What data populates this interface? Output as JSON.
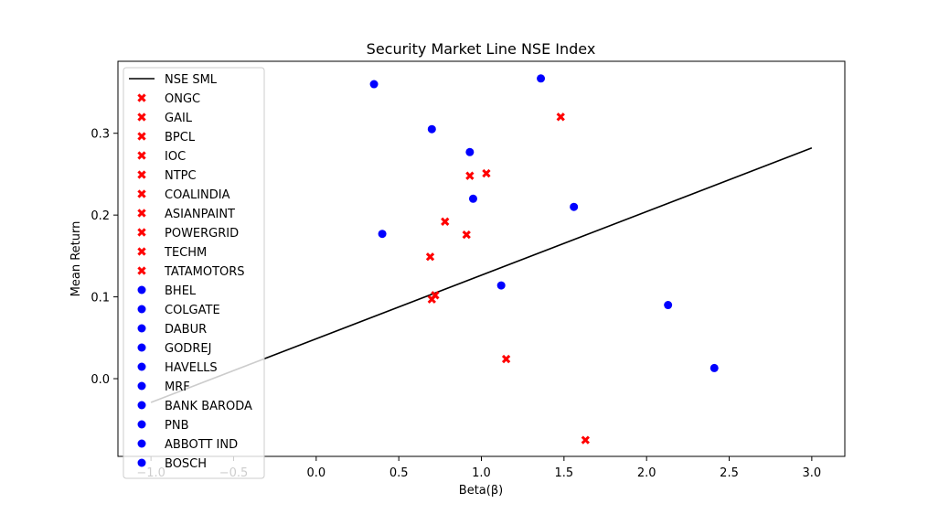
{
  "chart_data": {
    "type": "scatter",
    "title": "Security Market Line NSE Index",
    "xlabel": "Beta(β)",
    "ylabel": "Mean Return",
    "xlim": [
      -1.2,
      3.2
    ],
    "ylim": [
      -0.095,
      0.388
    ],
    "xticks": [
      -1.0,
      -0.5,
      0.0,
      0.5,
      1.0,
      1.5,
      2.0,
      2.5,
      3.0
    ],
    "xtick_labels": [
      "−1.0",
      "−0.5",
      "0.0",
      "0.5",
      "1.0",
      "1.5",
      "2.0",
      "2.5",
      "3.0"
    ],
    "yticks": [
      0.0,
      0.1,
      0.2,
      0.3
    ],
    "ytick_labels": [
      "0.0",
      "0.1",
      "0.2",
      "0.3"
    ],
    "grid": false,
    "legend_position": "upper-left",
    "sml_line": {
      "name": "NSE SML",
      "color": "#000000",
      "x": [
        -1.0,
        3.0
      ],
      "y": [
        -0.029,
        0.282
      ]
    },
    "series": [
      {
        "name": "ONGC",
        "marker": "x",
        "color": "#ff0000",
        "x": 1.48,
        "y": 0.32
      },
      {
        "name": "GAIL",
        "marker": "x",
        "color": "#ff0000",
        "x": 1.03,
        "y": 0.251
      },
      {
        "name": "BPCL",
        "marker": "x",
        "color": "#ff0000",
        "x": 0.93,
        "y": 0.248
      },
      {
        "name": "IOC",
        "marker": "x",
        "color": "#ff0000",
        "x": 0.78,
        "y": 0.192
      },
      {
        "name": "NTPC",
        "marker": "x",
        "color": "#ff0000",
        "x": 0.91,
        "y": 0.176
      },
      {
        "name": "COALINDIA",
        "marker": "x",
        "color": "#ff0000",
        "x": 0.69,
        "y": 0.149
      },
      {
        "name": "ASIANPAINT",
        "marker": "x",
        "color": "#ff0000",
        "x": 0.72,
        "y": 0.102
      },
      {
        "name": "POWERGRID",
        "marker": "x",
        "color": "#ff0000",
        "x": 0.7,
        "y": 0.097
      },
      {
        "name": "TECHM",
        "marker": "x",
        "color": "#ff0000",
        "x": 1.15,
        "y": 0.024
      },
      {
        "name": "TATAMOTORS",
        "marker": "x",
        "color": "#ff0000",
        "x": 1.63,
        "y": -0.075
      },
      {
        "name": "BHEL",
        "marker": "o",
        "color": "#0000ff",
        "x": 0.35,
        "y": 0.36
      },
      {
        "name": "COLGATE",
        "marker": "o",
        "color": "#0000ff",
        "x": 1.36,
        "y": 0.367
      },
      {
        "name": "DABUR",
        "marker": "o",
        "color": "#0000ff",
        "x": 0.7,
        "y": 0.305
      },
      {
        "name": "GODREJ",
        "marker": "o",
        "color": "#0000ff",
        "x": 0.93,
        "y": 0.277
      },
      {
        "name": "HAVELLS",
        "marker": "o",
        "color": "#0000ff",
        "x": 0.95,
        "y": 0.22
      },
      {
        "name": "MRF",
        "marker": "o",
        "color": "#0000ff",
        "x": 1.56,
        "y": 0.21
      },
      {
        "name": "BANK BARODA",
        "marker": "o",
        "color": "#0000ff",
        "x": 0.4,
        "y": 0.177
      },
      {
        "name": "PNB",
        "marker": "o",
        "color": "#0000ff",
        "x": 1.12,
        "y": 0.114
      },
      {
        "name": "ABBOTT IND",
        "marker": "o",
        "color": "#0000ff",
        "x": 2.13,
        "y": 0.09
      },
      {
        "name": "BOSCH",
        "marker": "o",
        "color": "#0000ff",
        "x": 2.41,
        "y": 0.013
      }
    ]
  }
}
